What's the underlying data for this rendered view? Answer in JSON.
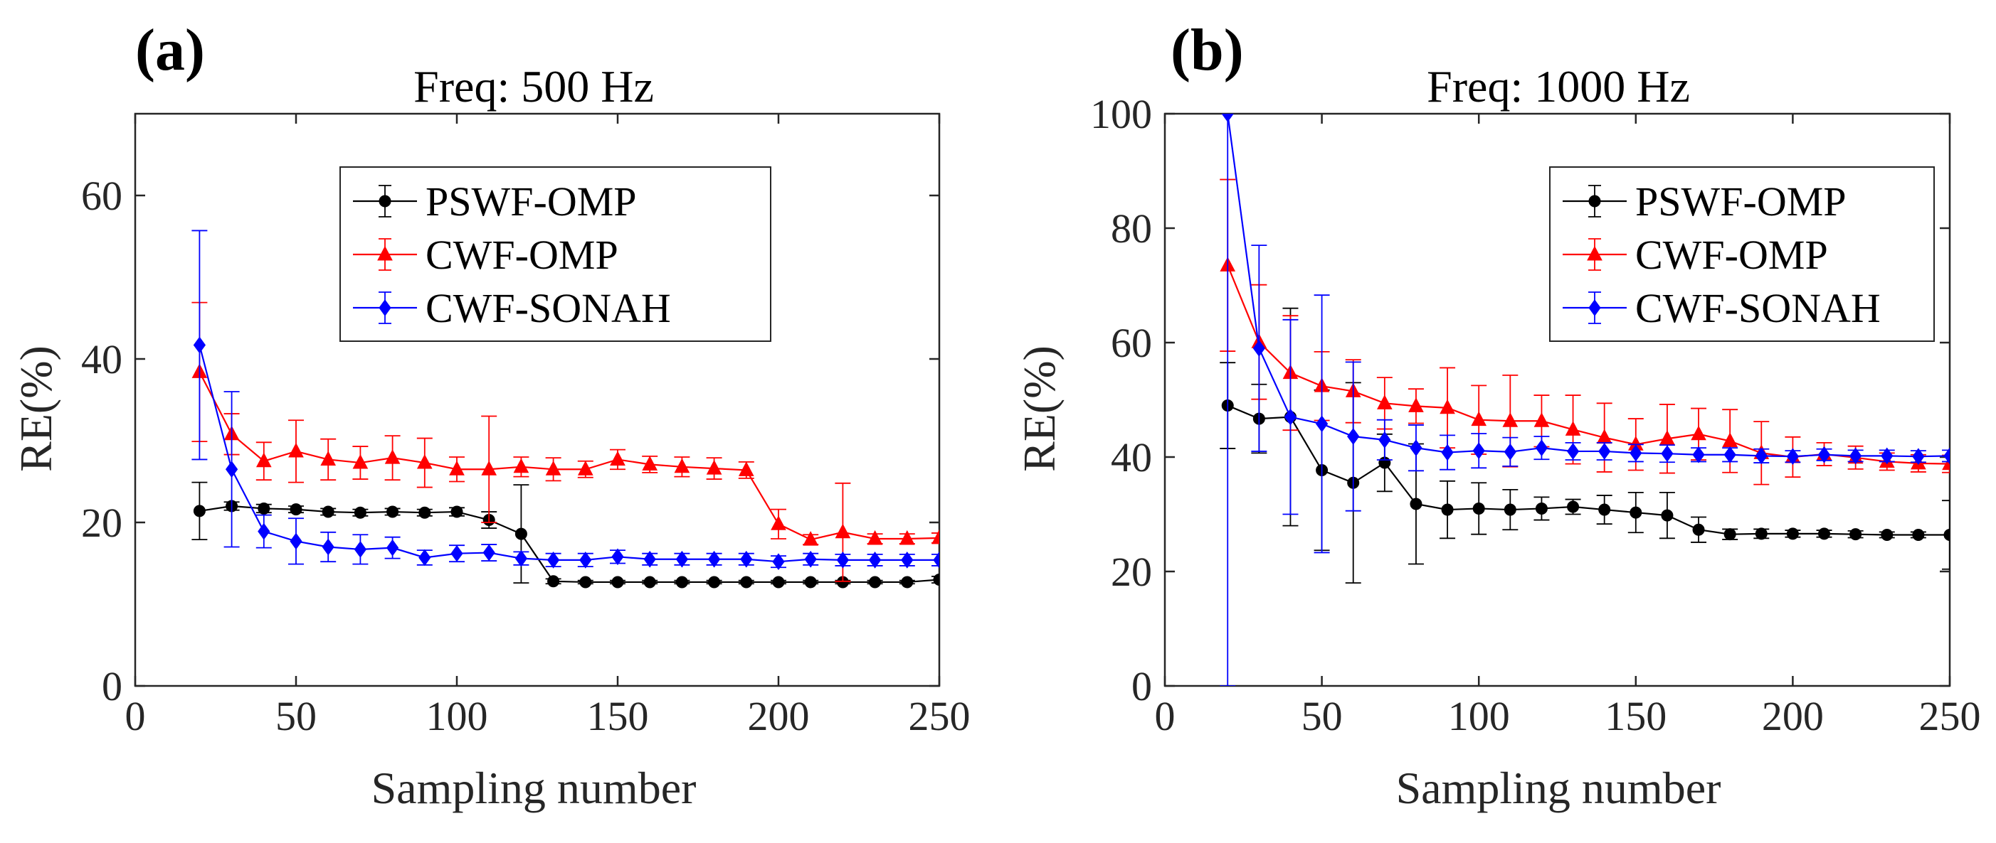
{
  "chart_data": [
    {
      "type": "line",
      "panel_label": "(a)",
      "title": "Freq: 500 Hz",
      "xlabel": "Sampling number",
      "ylabel": "RE(%)",
      "xlim": [
        0,
        250
      ],
      "ylim": [
        0,
        70
      ],
      "xticks": [
        0,
        50,
        100,
        150,
        200,
        250
      ],
      "yticks": [
        0,
        20,
        40,
        60
      ],
      "legend_position": "top-right",
      "x": [
        20,
        30,
        40,
        50,
        60,
        70,
        80,
        90,
        100,
        110,
        120,
        130,
        140,
        150,
        160,
        170,
        180,
        190,
        200,
        210,
        220,
        230,
        240,
        250
      ],
      "series": [
        {
          "name": "PSWF-OMP",
          "color": "#000000",
          "marker": "circle",
          "values": [
            21.4,
            22.0,
            21.7,
            21.6,
            21.3,
            21.2,
            21.3,
            21.2,
            21.3,
            20.3,
            18.6,
            12.8,
            12.7,
            12.7,
            12.7,
            12.7,
            12.7,
            12.7,
            12.7,
            12.7,
            12.7,
            12.7,
            12.7,
            13.0
          ],
          "errors": [
            3.5,
            0.5,
            0.5,
            0.4,
            0.4,
            0.4,
            0.4,
            0.4,
            0.5,
            1.0,
            6.0,
            0.3,
            0.2,
            0.2,
            0.2,
            0.2,
            0.2,
            0.2,
            0.2,
            0.2,
            0.2,
            0.2,
            0.2,
            0.4
          ]
        },
        {
          "name": "CWF-OMP",
          "color": "#ff0000",
          "marker": "triangle",
          "values": [
            38.4,
            30.8,
            27.5,
            28.7,
            27.7,
            27.3,
            27.9,
            27.3,
            26.5,
            26.5,
            26.8,
            26.5,
            26.5,
            27.7,
            27.1,
            26.8,
            26.6,
            26.4,
            19.8,
            17.9,
            18.8,
            18.0,
            18.0,
            18.1
          ],
          "errors": [
            8.5,
            2.5,
            2.3,
            3.8,
            2.5,
            2.0,
            2.7,
            3.0,
            1.5,
            6.5,
            1.2,
            1.4,
            1.0,
            1.2,
            1.0,
            1.2,
            1.3,
            1.0,
            1.8,
            0.6,
            6.0,
            0.6,
            0.6,
            0.6
          ]
        },
        {
          "name": "CWF-SONAH",
          "color": "#0000ff",
          "marker": "diamond",
          "values": [
            41.7,
            26.5,
            18.9,
            17.7,
            17.0,
            16.7,
            16.9,
            15.7,
            16.2,
            16.3,
            15.6,
            15.4,
            15.4,
            15.8,
            15.5,
            15.5,
            15.5,
            15.5,
            15.2,
            15.5,
            15.4,
            15.4,
            15.4,
            15.4
          ],
          "errors": [
            14.0,
            9.5,
            2.0,
            2.8,
            1.8,
            1.8,
            1.3,
            0.9,
            1.0,
            1.0,
            0.8,
            0.8,
            0.8,
            0.8,
            0.7,
            0.7,
            0.7,
            0.7,
            0.7,
            0.7,
            0.7,
            0.7,
            0.7,
            0.7
          ]
        }
      ]
    },
    {
      "type": "line",
      "panel_label": "(b)",
      "title": "Freq: 1000 Hz",
      "xlabel": "Sampling number",
      "ylabel": "RE(%)",
      "xlim": [
        0,
        250
      ],
      "ylim": [
        0,
        100
      ],
      "xticks": [
        0,
        50,
        100,
        150,
        200,
        250
      ],
      "yticks": [
        0,
        20,
        40,
        60,
        80,
        100
      ],
      "legend_position": "top-right",
      "x": [
        20,
        30,
        40,
        50,
        60,
        70,
        80,
        90,
        100,
        110,
        120,
        130,
        140,
        150,
        160,
        170,
        180,
        190,
        200,
        210,
        220,
        230,
        240,
        250
      ],
      "series": [
        {
          "name": "PSWF-OMP",
          "color": "#000000",
          "marker": "circle",
          "values": [
            49.0,
            46.7,
            47.0,
            37.7,
            35.5,
            39.0,
            31.8,
            30.8,
            31.0,
            30.8,
            31.0,
            31.3,
            30.8,
            30.3,
            29.8,
            27.3,
            26.5,
            26.6,
            26.6,
            26.6,
            26.5,
            26.4,
            26.4,
            26.4
          ],
          "errors": [
            7.5,
            6.0,
            19.0,
            14.0,
            17.5,
            5.0,
            10.5,
            5.0,
            4.5,
            3.5,
            2.0,
            1.3,
            2.5,
            3.5,
            4.0,
            2.2,
            0.9,
            0.8,
            0.6,
            0.6,
            0.6,
            0.5,
            0.5,
            6.0
          ]
        },
        {
          "name": "CWF-OMP",
          "color": "#ff0000",
          "marker": "triangle",
          "values": [
            73.5,
            60.1,
            54.7,
            52.4,
            51.5,
            49.4,
            48.9,
            48.6,
            46.5,
            46.3,
            46.3,
            44.8,
            43.4,
            42.2,
            43.2,
            44.0,
            42.8,
            40.7,
            40.0,
            40.5,
            39.9,
            39.2,
            38.9,
            38.8
          ],
          "errors": [
            15.0,
            10.0,
            10.0,
            6.0,
            5.5,
            4.5,
            3.0,
            7.0,
            6.0,
            8.0,
            4.5,
            6.0,
            6.0,
            4.5,
            6.0,
            4.5,
            5.5,
            5.5,
            3.5,
            2.0,
            2.0,
            1.5,
            1.5,
            1.5
          ]
        },
        {
          "name": "CWF-SONAH",
          "color": "#0000ff",
          "marker": "diamond",
          "values": [
            100,
            59.0,
            47.0,
            45.8,
            43.6,
            43.0,
            41.6,
            40.8,
            41.1,
            40.9,
            41.6,
            41.0,
            41.0,
            40.7,
            40.6,
            40.4,
            40.4,
            40.2,
            40.1,
            40.4,
            40.2,
            40.2,
            40.1,
            40.2
          ],
          "errors": [
            100,
            18.0,
            17.0,
            22.5,
            13.0,
            3.5,
            4.0,
            3.0,
            3.0,
            2.5,
            2.0,
            1.5,
            1.5,
            1.5,
            1.5,
            1.2,
            1.2,
            1.2,
            1.0,
            1.0,
            1.0,
            1.0,
            1.0,
            1.0
          ]
        }
      ]
    }
  ]
}
